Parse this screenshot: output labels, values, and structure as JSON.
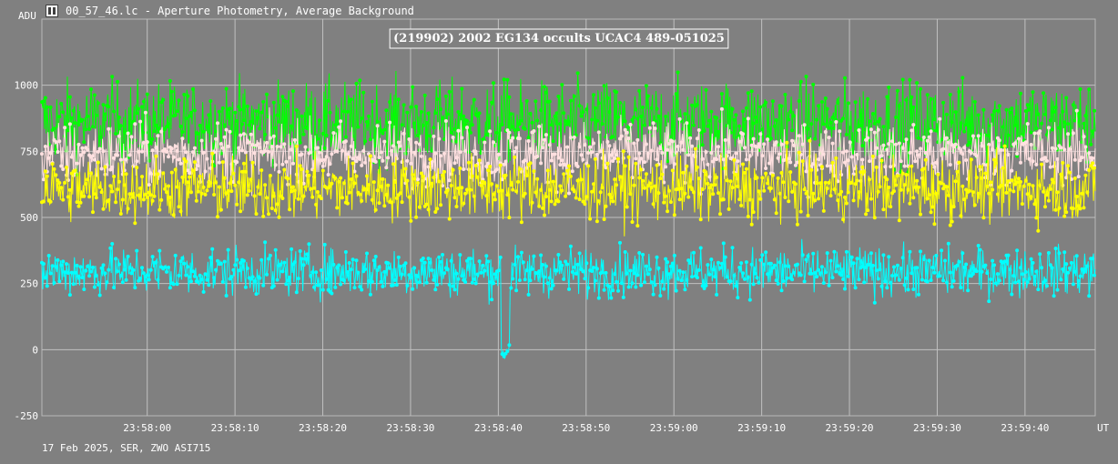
{
  "window": {
    "title": "00_57_46.lc - Aperture Photometry, Average Background",
    "icon": "film-icon"
  },
  "footer": {
    "info": "17 Feb 2025, SER, ZWO ASI715"
  },
  "chart_data": {
    "type": "scatter",
    "title": "(219902) 2002 EG134 occults UCAC4 489-051025",
    "ylabel": "ADU",
    "xlabel": "UT",
    "ylim": [
      -250,
      1250
    ],
    "yticks": [
      -250,
      0,
      250,
      500,
      750,
      1000
    ],
    "xlim": [
      "23:57:48",
      "23:59:48"
    ],
    "xtick_labels": [
      "23:58:00",
      "23:58:10",
      "23:58:20",
      "23:58:30",
      "23:58:40",
      "23:58:50",
      "23:59:00",
      "23:59:10",
      "23:59:20",
      "23:59:30",
      "23:59:40"
    ],
    "grid": true,
    "style": "lines with point markers",
    "event": {
      "series": "target",
      "start": "23:58:40.3",
      "end": "23:58:41.3",
      "level": 0
    },
    "series": [
      {
        "color": "#00ff00",
        "mean": 860,
        "noise": 75
      },
      {
        "color": "#ffe0e0",
        "mean": 740,
        "noise": 60
      },
      {
        "color": "#ffff00",
        "mean": 610,
        "noise": 60
      },
      {
        "color": "#00ffff",
        "mean": 295,
        "noise": 45
      }
    ]
  }
}
